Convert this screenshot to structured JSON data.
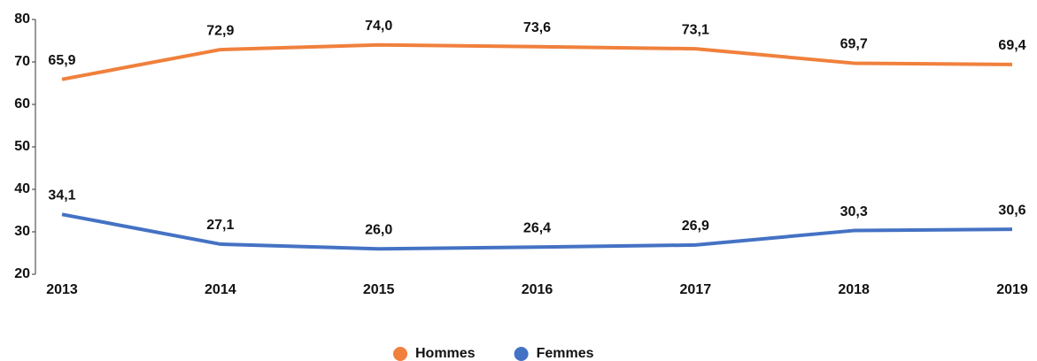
{
  "chart_data": {
    "type": "line",
    "categories": [
      "2013",
      "2014",
      "2015",
      "2016",
      "2017",
      "2018",
      "2019"
    ],
    "series": [
      {
        "name": "Hommes",
        "color": "#f0803c",
        "values": [
          65.9,
          72.9,
          74.0,
          73.6,
          73.1,
          69.7,
          69.4
        ],
        "value_labels": [
          "65,9",
          "72,9",
          "74,0",
          "73,6",
          "73,1",
          "69,7",
          "69,4"
        ]
      },
      {
        "name": "Femmes",
        "color": "#4472c4",
        "values": [
          34.1,
          27.1,
          26.0,
          26.4,
          26.9,
          30.3,
          30.6
        ],
        "value_labels": [
          "34,1",
          "27,1",
          "26,0",
          "26,4",
          "26,9",
          "30,3",
          "30,6"
        ]
      }
    ],
    "ylim": [
      20,
      80
    ],
    "yticks": [
      20,
      30,
      40,
      50,
      60,
      70,
      80
    ],
    "grid": false,
    "legend": "bottom"
  }
}
